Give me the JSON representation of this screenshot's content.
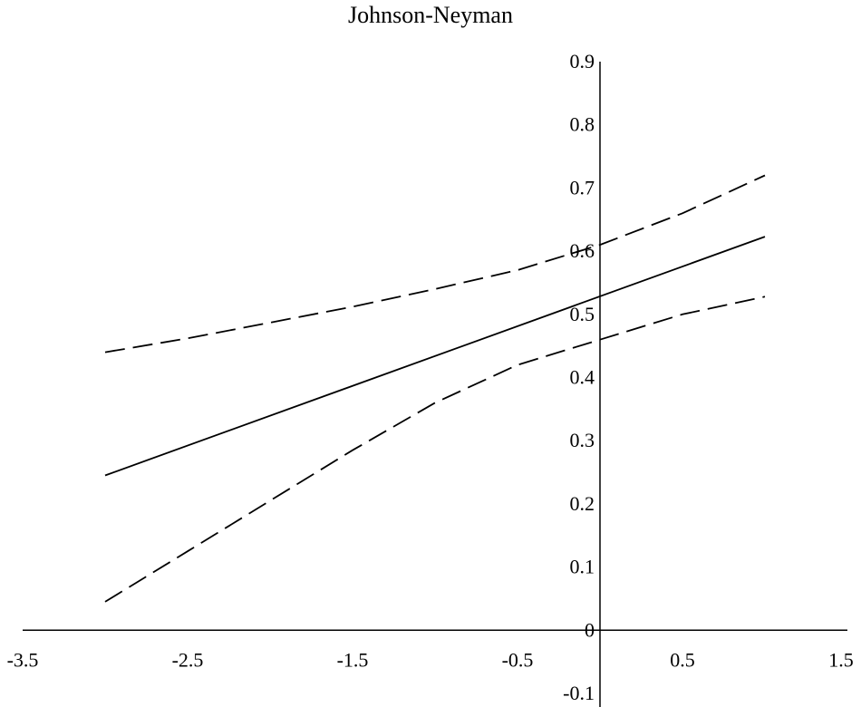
{
  "chart_data": {
    "type": "line",
    "title": "Johnson-Neyman",
    "xlabel": "",
    "ylabel": "",
    "xlim": [
      -3.5,
      1.5
    ],
    "ylim": [
      -0.1,
      0.9
    ],
    "x_ticks": [
      "-3.5",
      "-2.5",
      "-1.5",
      "-0.5",
      "0.5",
      "1.5"
    ],
    "x_tick_values": [
      -3.5,
      -2.5,
      -1.5,
      -0.5,
      0.5,
      1.5
    ],
    "y_ticks": [
      "-0.1",
      "0",
      "0.1",
      "0.2",
      "0.3",
      "0.4",
      "0.5",
      "0.6",
      "0.7",
      "0.8",
      "0.9"
    ],
    "y_tick_values": [
      -0.1,
      0,
      0.1,
      0.2,
      0.3,
      0.4,
      0.5,
      0.6,
      0.7,
      0.8,
      0.9
    ],
    "grid": false,
    "legend": "none",
    "series": [
      {
        "style": "dashed",
        "color": "#000000",
        "x": [
          -3.0,
          -2.5,
          -2.0,
          -1.5,
          -1.0,
          -0.5,
          0.0,
          0.5,
          1.0
        ],
        "y": [
          0.44,
          0.462,
          0.487,
          0.512,
          0.54,
          0.57,
          0.61,
          0.66,
          0.72
        ]
      },
      {
        "style": "solid",
        "color": "#000000",
        "x": [
          -3.0,
          1.0
        ],
        "y": [
          0.245,
          0.623
        ]
      },
      {
        "style": "dashed",
        "color": "#000000",
        "x": [
          -3.0,
          -2.5,
          -2.0,
          -1.5,
          -1.0,
          -0.5,
          0.0,
          0.5,
          1.0
        ],
        "y": [
          0.045,
          0.125,
          0.205,
          0.285,
          0.36,
          0.42,
          0.46,
          0.5,
          0.528
        ]
      }
    ]
  }
}
